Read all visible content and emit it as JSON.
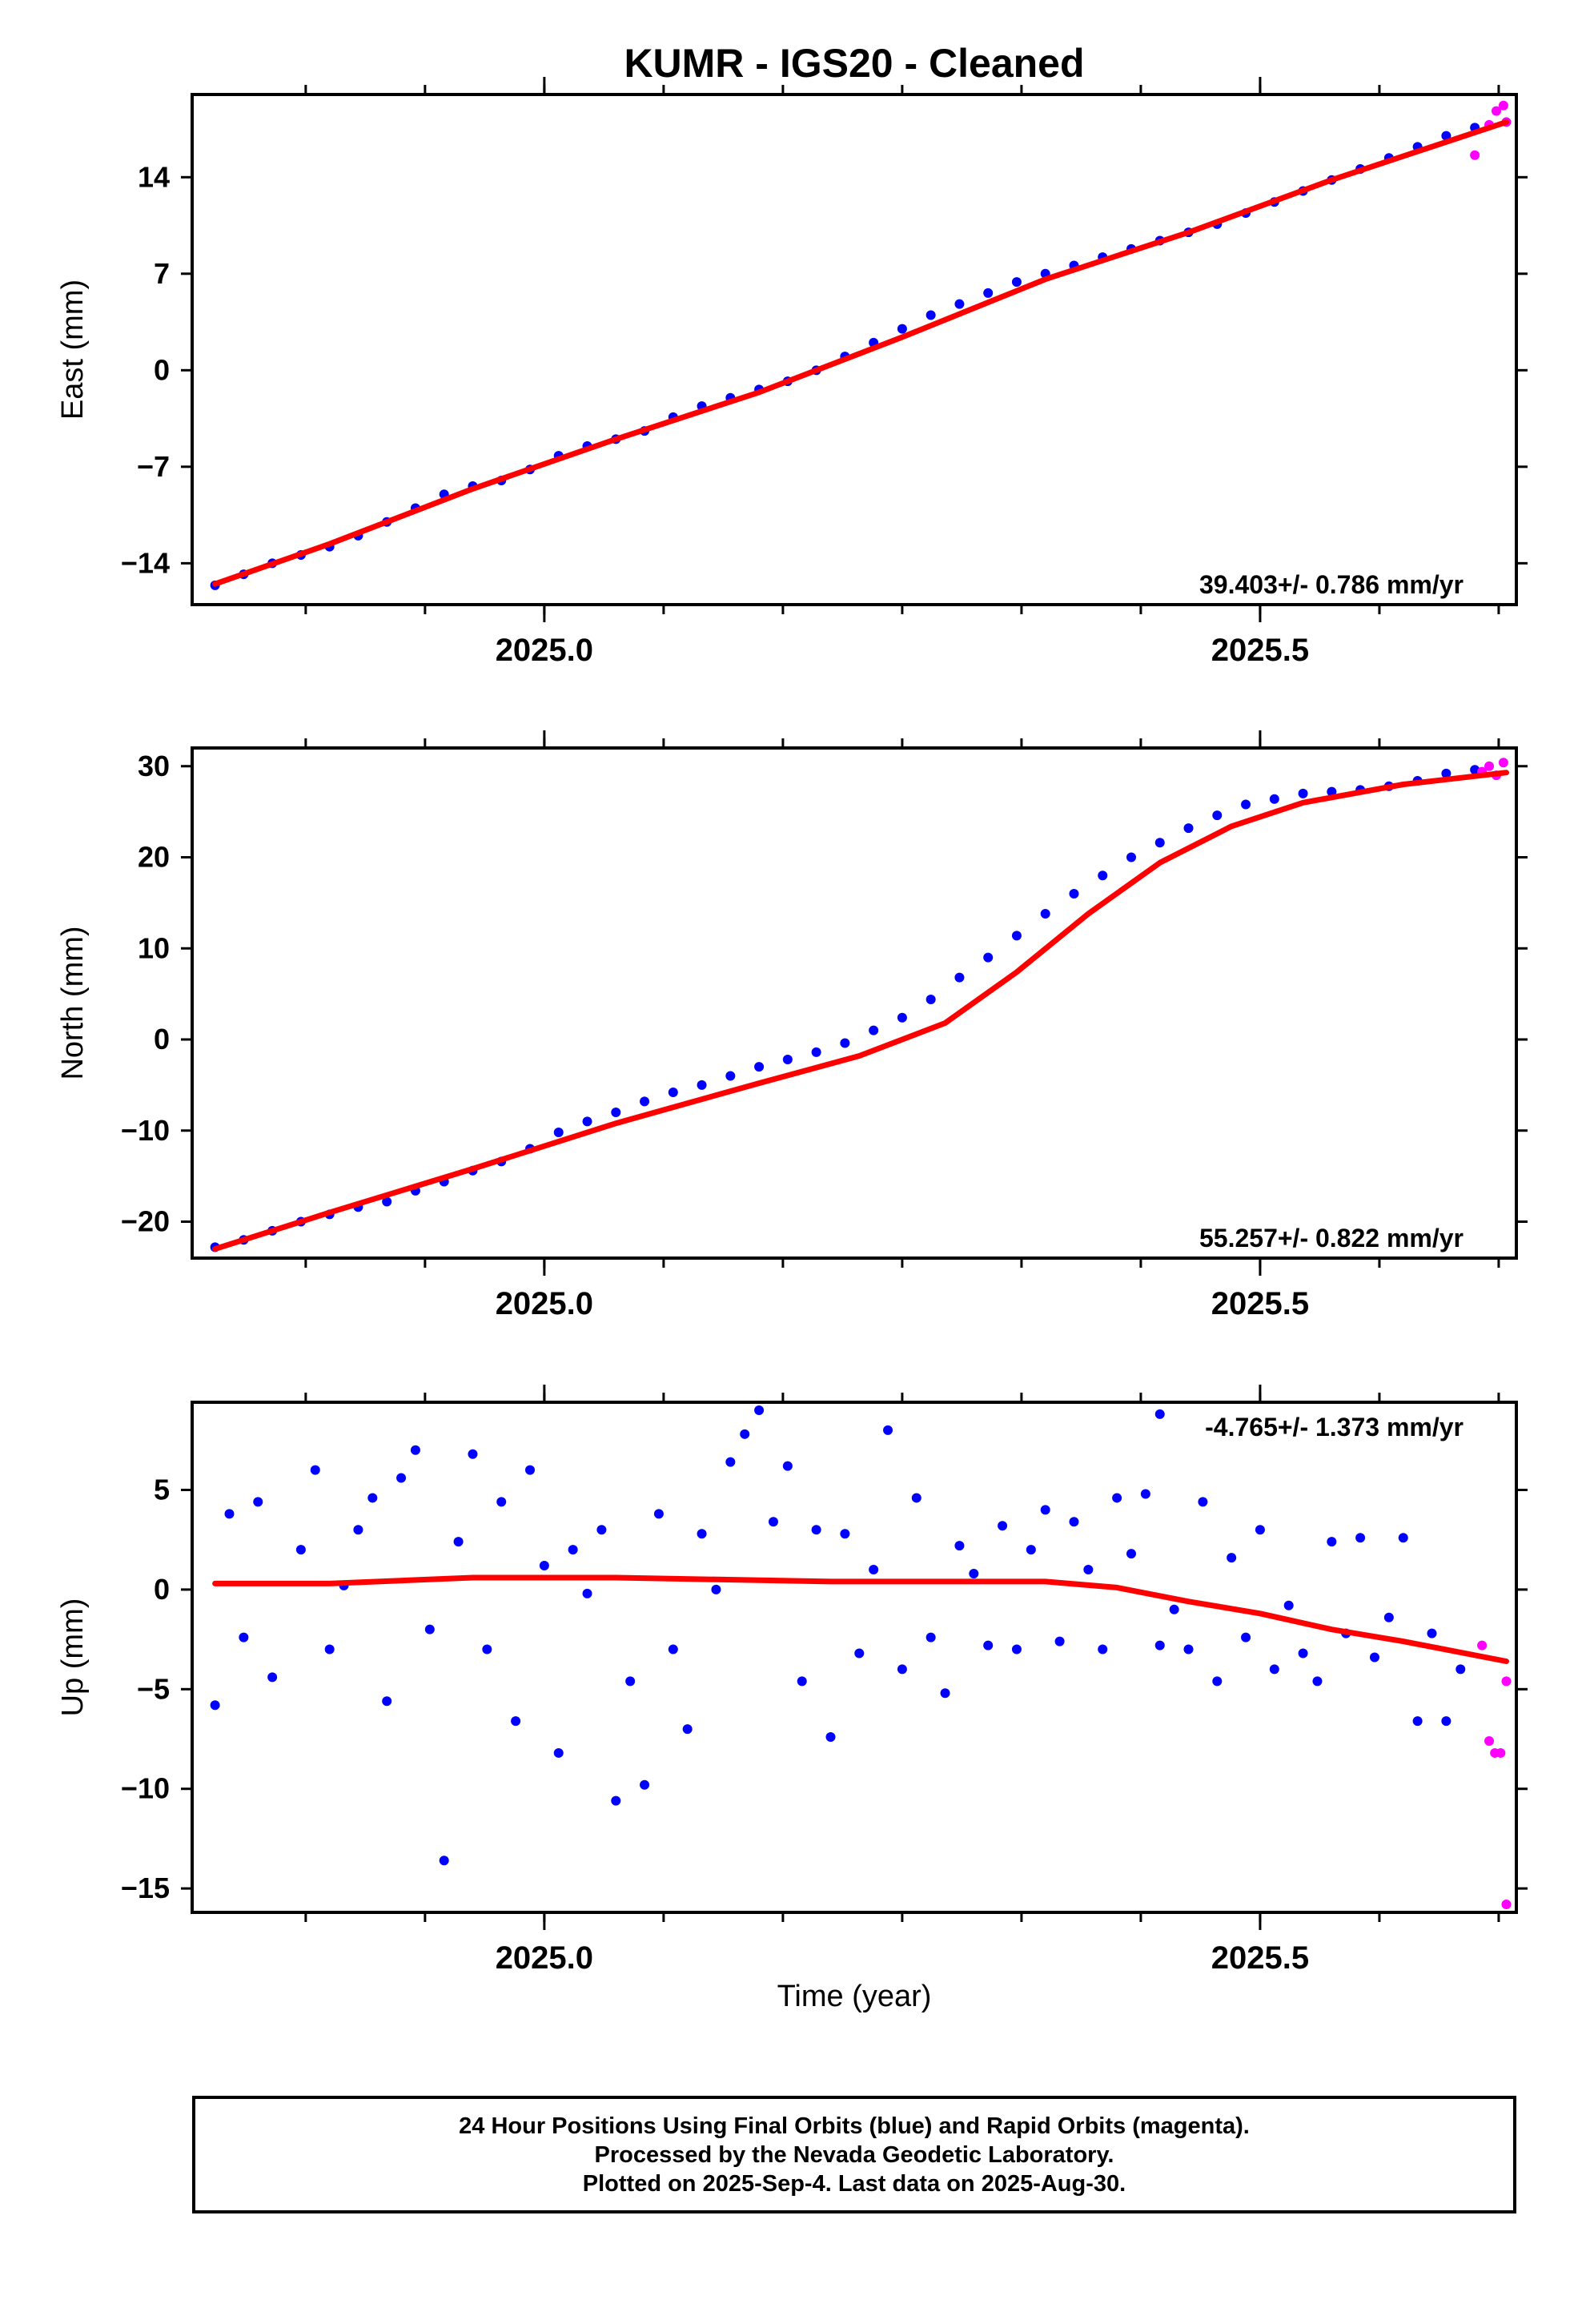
{
  "title": "KUMR  - IGS20 - Cleaned",
  "xlabel": "Time (year)",
  "footer": {
    "line1": "24 Hour Positions Using Final Orbits (blue) and Rapid Orbits (magenta).",
    "line2": "Processed by the Nevada Geodetic Laboratory.",
    "line3": "Plotted on 2025-Sep-4. Last data on 2025-Aug-30."
  },
  "colors": {
    "final": "#0000ff",
    "rapid": "#ff00ff",
    "fit": "#ff0000"
  },
  "chart_data": [
    {
      "type": "scatter",
      "ylabel": "East (mm)",
      "xlim": [
        2024.754,
        2025.679
      ],
      "ylim": [
        -17,
        20
      ],
      "yticks": [
        -14,
        -7,
        0,
        7,
        14
      ],
      "xticks_labeled": [
        "2025.0",
        "2025.5"
      ],
      "xtick_values": [
        2025.0,
        2025.5
      ],
      "rate_label": "39.403+/- 0.786 mm/yr",
      "rate_position": "bottom-right",
      "series": [
        {
          "points": [
            [
              2024.77,
              -15.6
            ],
            [
              2024.79,
              -14.8
            ],
            [
              2024.81,
              -14.0
            ],
            [
              2024.83,
              -13.4
            ],
            [
              2024.85,
              -12.8
            ],
            [
              2024.87,
              -12.0
            ],
            [
              2024.89,
              -11.0
            ],
            [
              2024.91,
              -10.0
            ],
            [
              2024.93,
              -9.0
            ],
            [
              2024.95,
              -8.4
            ],
            [
              2024.97,
              -8.0
            ],
            [
              2024.99,
              -7.2
            ],
            [
              2025.01,
              -6.2
            ],
            [
              2025.03,
              -5.5
            ],
            [
              2025.05,
              -5.0
            ],
            [
              2025.07,
              -4.4
            ],
            [
              2025.09,
              -3.4
            ],
            [
              2025.11,
              -2.6
            ],
            [
              2025.13,
              -2.0
            ],
            [
              2025.15,
              -1.4
            ],
            [
              2025.17,
              -0.8
            ],
            [
              2025.19,
              0.0
            ],
            [
              2025.21,
              1.0
            ],
            [
              2025.23,
              2.0
            ],
            [
              2025.25,
              3.0
            ],
            [
              2025.27,
              4.0
            ],
            [
              2025.29,
              4.8
            ],
            [
              2025.31,
              5.6
            ],
            [
              2025.33,
              6.4
            ],
            [
              2025.35,
              7.0
            ],
            [
              2025.37,
              7.6
            ],
            [
              2025.39,
              8.2
            ],
            [
              2025.41,
              8.8
            ],
            [
              2025.43,
              9.4
            ],
            [
              2025.45,
              10.0
            ],
            [
              2025.47,
              10.6
            ],
            [
              2025.49,
              11.4
            ],
            [
              2025.51,
              12.2
            ],
            [
              2025.53,
              13.0
            ],
            [
              2025.55,
              13.8
            ],
            [
              2025.57,
              14.6
            ],
            [
              2025.59,
              15.4
            ],
            [
              2025.61,
              16.2
            ],
            [
              2025.63,
              17.0
            ],
            [
              2025.65,
              17.6
            ]
          ]
        },
        {
          "points": [
            [
              2025.65,
              15.6
            ],
            [
              2025.66,
              17.8
            ],
            [
              2025.665,
              18.8
            ],
            [
              2025.67,
              19.2
            ],
            [
              2025.672,
              18.0
            ]
          ]
        }
      ],
      "fit": [
        [
          2024.77,
          -15.5
        ],
        [
          2024.85,
          -12.6
        ],
        [
          2024.95,
          -8.6
        ],
        [
          2025.05,
          -5.0
        ],
        [
          2025.15,
          -1.6
        ],
        [
          2025.25,
          2.4
        ],
        [
          2025.35,
          6.6
        ],
        [
          2025.45,
          10.0
        ],
        [
          2025.55,
          13.8
        ],
        [
          2025.672,
          18.0
        ]
      ]
    },
    {
      "type": "scatter",
      "ylabel": "North (mm)",
      "xlim": [
        2024.754,
        2025.679
      ],
      "ylim": [
        -24,
        32
      ],
      "yticks": [
        -20,
        -10,
        0,
        10,
        20,
        30
      ],
      "xticks_labeled": [
        "2025.0",
        "2025.5"
      ],
      "xtick_values": [
        2025.0,
        2025.5
      ],
      "rate_label": "55.257+/- 0.822 mm/yr",
      "rate_position": "bottom-right",
      "series": [
        {
          "points": [
            [
              2024.77,
              -22.8
            ],
            [
              2024.79,
              -22.0
            ],
            [
              2024.81,
              -21.0
            ],
            [
              2024.83,
              -20.0
            ],
            [
              2024.85,
              -19.2
            ],
            [
              2024.87,
              -18.4
            ],
            [
              2024.89,
              -17.8
            ],
            [
              2024.91,
              -16.6
            ],
            [
              2024.93,
              -15.6
            ],
            [
              2024.95,
              -14.4
            ],
            [
              2024.97,
              -13.4
            ],
            [
              2024.99,
              -12.0
            ],
            [
              2025.01,
              -10.2
            ],
            [
              2025.03,
              -9.0
            ],
            [
              2025.05,
              -8.0
            ],
            [
              2025.07,
              -6.8
            ],
            [
              2025.09,
              -5.8
            ],
            [
              2025.11,
              -5.0
            ],
            [
              2025.13,
              -4.0
            ],
            [
              2025.15,
              -3.0
            ],
            [
              2025.17,
              -2.2
            ],
            [
              2025.19,
              -1.4
            ],
            [
              2025.21,
              -0.4
            ],
            [
              2025.23,
              1.0
            ],
            [
              2025.25,
              2.4
            ],
            [
              2025.27,
              4.4
            ],
            [
              2025.29,
              6.8
            ],
            [
              2025.31,
              9.0
            ],
            [
              2025.33,
              11.4
            ],
            [
              2025.35,
              13.8
            ],
            [
              2025.37,
              16.0
            ],
            [
              2025.39,
              18.0
            ],
            [
              2025.41,
              20.0
            ],
            [
              2025.43,
              21.6
            ],
            [
              2025.45,
              23.2
            ],
            [
              2025.47,
              24.6
            ],
            [
              2025.49,
              25.8
            ],
            [
              2025.51,
              26.4
            ],
            [
              2025.53,
              27.0
            ],
            [
              2025.55,
              27.2
            ],
            [
              2025.57,
              27.4
            ],
            [
              2025.59,
              27.8
            ],
            [
              2025.61,
              28.4
            ],
            [
              2025.63,
              29.2
            ],
            [
              2025.65,
              29.6
            ]
          ]
        },
        {
          "points": [
            [
              2025.655,
              29.4
            ],
            [
              2025.66,
              30.0
            ],
            [
              2025.665,
              29.0
            ],
            [
              2025.67,
              30.4
            ]
          ]
        }
      ],
      "fit": [
        [
          2024.77,
          -23.0
        ],
        [
          2024.85,
          -19.0
        ],
        [
          2024.95,
          -14.2
        ],
        [
          2025.05,
          -9.2
        ],
        [
          2025.15,
          -4.8
        ],
        [
          2025.22,
          -1.8
        ],
        [
          2025.28,
          1.8
        ],
        [
          2025.33,
          7.4
        ],
        [
          2025.38,
          13.8
        ],
        [
          2025.43,
          19.4
        ],
        [
          2025.48,
          23.4
        ],
        [
          2025.53,
          26.0
        ],
        [
          2025.6,
          28.0
        ],
        [
          2025.672,
          29.3
        ]
      ]
    },
    {
      "type": "scatter",
      "ylabel": "Up (mm)",
      "xlim": [
        2024.754,
        2025.679
      ],
      "ylim": [
        -16.2,
        9.4
      ],
      "yticks": [
        -15,
        -10,
        -5,
        0,
        5
      ],
      "xticks_labeled": [
        "2025.0",
        "2025.5"
      ],
      "xtick_values": [
        2025.0,
        2025.5
      ],
      "rate_label": "-4.765+/- 1.373 mm/yr",
      "rate_position": "top-right",
      "series": [
        {
          "points": [
            [
              2024.77,
              -5.8
            ],
            [
              2024.78,
              3.8
            ],
            [
              2024.79,
              -2.4
            ],
            [
              2024.8,
              4.4
            ],
            [
              2024.81,
              -4.4
            ],
            [
              2024.83,
              2.0
            ],
            [
              2024.84,
              6.0
            ],
            [
              2024.85,
              -3.0
            ],
            [
              2024.86,
              0.2
            ],
            [
              2024.87,
              3.0
            ],
            [
              2024.88,
              4.6
            ],
            [
              2024.89,
              -5.6
            ],
            [
              2024.9,
              5.6
            ],
            [
              2024.91,
              7.0
            ],
            [
              2024.92,
              -2.0
            ],
            [
              2024.93,
              -13.6
            ],
            [
              2024.94,
              2.4
            ],
            [
              2024.95,
              6.8
            ],
            [
              2024.96,
              -3.0
            ],
            [
              2024.97,
              4.4
            ],
            [
              2024.98,
              -6.6
            ],
            [
              2024.99,
              6.0
            ],
            [
              2025.0,
              1.2
            ],
            [
              2025.01,
              -8.2
            ],
            [
              2025.02,
              2.0
            ],
            [
              2025.03,
              -0.2
            ],
            [
              2025.04,
              3.0
            ],
            [
              2025.05,
              -10.6
            ],
            [
              2025.06,
              -4.6
            ],
            [
              2025.07,
              -9.8
            ],
            [
              2025.08,
              3.8
            ],
            [
              2025.09,
              -3.0
            ],
            [
              2025.1,
              -7.0
            ],
            [
              2025.11,
              2.8
            ],
            [
              2025.12,
              0.0
            ],
            [
              2025.13,
              6.4
            ],
            [
              2025.14,
              7.8
            ],
            [
              2025.15,
              9.0
            ],
            [
              2025.16,
              3.4
            ],
            [
              2025.17,
              6.2
            ],
            [
              2025.18,
              -4.6
            ],
            [
              2025.19,
              3.0
            ],
            [
              2025.2,
              -7.4
            ],
            [
              2025.21,
              2.8
            ],
            [
              2025.22,
              -3.2
            ],
            [
              2025.23,
              1.0
            ],
            [
              2025.24,
              8.0
            ],
            [
              2025.25,
              -4.0
            ],
            [
              2025.26,
              4.6
            ],
            [
              2025.27,
              -2.4
            ],
            [
              2025.28,
              -5.2
            ],
            [
              2025.29,
              2.2
            ],
            [
              2025.3,
              0.8
            ],
            [
              2025.31,
              -2.8
            ],
            [
              2025.32,
              3.2
            ],
            [
              2025.33,
              -3.0
            ],
            [
              2025.34,
              2.0
            ],
            [
              2025.35,
              4.0
            ],
            [
              2025.36,
              -2.6
            ],
            [
              2025.37,
              3.4
            ],
            [
              2025.38,
              1.0
            ],
            [
              2025.39,
              -3.0
            ],
            [
              2025.4,
              4.6
            ],
            [
              2025.41,
              1.8
            ],
            [
              2025.42,
              4.8
            ],
            [
              2025.43,
              -2.8
            ],
            [
              2025.44,
              -1.0
            ],
            [
              2025.45,
              -3.0
            ],
            [
              2025.46,
              4.4
            ],
            [
              2025.47,
              -4.6
            ],
            [
              2025.48,
              1.6
            ],
            [
              2025.49,
              -2.4
            ],
            [
              2025.5,
              3.0
            ],
            [
              2025.51,
              -4.0
            ],
            [
              2025.52,
              -0.8
            ],
            [
              2025.53,
              -3.2
            ],
            [
              2025.54,
              -4.6
            ],
            [
              2025.55,
              2.4
            ],
            [
              2025.56,
              -2.2
            ],
            [
              2025.57,
              2.6
            ],
            [
              2025.58,
              -3.4
            ],
            [
              2025.59,
              -1.4
            ],
            [
              2025.6,
              2.6
            ],
            [
              2025.61,
              -6.6
            ],
            [
              2025.62,
              -2.2
            ],
            [
              2025.63,
              -6.6
            ],
            [
              2025.64,
              -4.0
            ],
            [
              2025.43,
              8.8
            ]
          ]
        },
        {
          "points": [
            [
              2025.655,
              -2.8
            ],
            [
              2025.66,
              -7.6
            ],
            [
              2025.664,
              -8.2
            ],
            [
              2025.668,
              -8.2
            ],
            [
              2025.672,
              -4.6
            ],
            [
              2025.672,
              -15.8
            ]
          ]
        }
      ],
      "fit": [
        [
          2024.77,
          0.3
        ],
        [
          2024.85,
          0.3
        ],
        [
          2024.95,
          0.6
        ],
        [
          2025.05,
          0.6
        ],
        [
          2025.2,
          0.4
        ],
        [
          2025.35,
          0.4
        ],
        [
          2025.4,
          0.1
        ],
        [
          2025.45,
          -0.6
        ],
        [
          2025.5,
          -1.2
        ],
        [
          2025.55,
          -2.0
        ],
        [
          2025.6,
          -2.6
        ],
        [
          2025.672,
          -3.6
        ]
      ]
    }
  ]
}
